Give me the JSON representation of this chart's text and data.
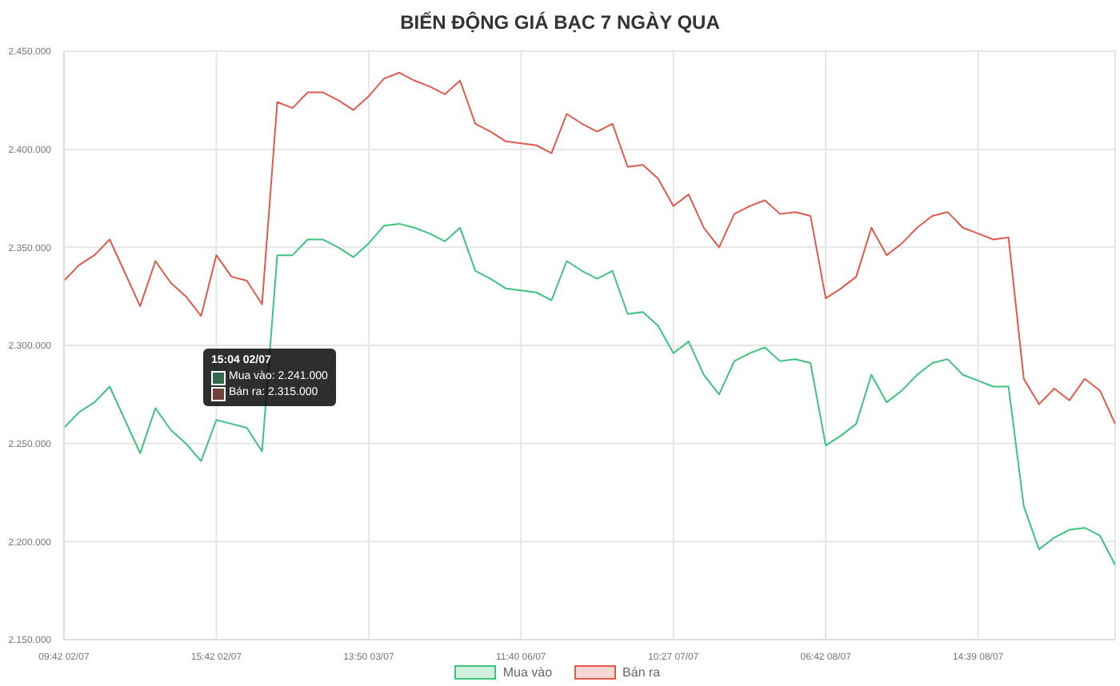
{
  "chart_data": {
    "type": "line",
    "title": "BIẾN ĐỘNG GIÁ BẠC 7 NGÀY QUA",
    "categories": [
      "09:42 02/07",
      null,
      null,
      null,
      null,
      null,
      null,
      null,
      null,
      null,
      "15:42 02/07",
      null,
      null,
      null,
      null,
      null,
      null,
      null,
      null,
      null,
      "13:50 03/07",
      null,
      null,
      null,
      null,
      null,
      null,
      null,
      null,
      null,
      "11:40 06/07",
      null,
      null,
      null,
      null,
      null,
      null,
      null,
      null,
      null,
      "10:27 07/07",
      null,
      null,
      null,
      null,
      null,
      null,
      null,
      null,
      null,
      "06:42 08/07",
      null,
      null,
      null,
      null,
      null,
      null,
      null,
      null,
      null,
      "14:39 08/07",
      null,
      null,
      null,
      null,
      null,
      null,
      null,
      null,
      null
    ],
    "series": [
      {
        "name": "Mua vào",
        "color": "#3ec47e",
        "values": [
          2258000,
          2266000,
          2271000,
          2279000,
          2262000,
          2245000,
          2268000,
          2257000,
          2250000,
          2241000,
          2262000,
          2260000,
          2258000,
          2246000,
          2346000,
          2346000,
          2354000,
          2354000,
          2350000,
          2345000,
          2352000,
          2361000,
          2362000,
          2360000,
          2357000,
          2353000,
          2360000,
          2338000,
          2334000,
          2329000,
          2328000,
          2327000,
          2323000,
          2343000,
          2338000,
          2334000,
          2338000,
          2316000,
          2317000,
          2310000,
          2296000,
          2302000,
          2285000,
          2275000,
          2292000,
          2296000,
          2299000,
          2292000,
          2293000,
          2291000,
          2249000,
          2254000,
          2260000,
          2285000,
          2271000,
          2277000,
          2285000,
          2291000,
          2293000,
          2285000,
          2282000,
          2279000,
          2279000,
          2218000,
          2196000,
          2202000,
          2206000,
          2207000,
          2203000,
          2188000
        ]
      },
      {
        "name": "Bán ra",
        "color": "#e05a4e",
        "values": [
          2333000,
          2341000,
          2346000,
          2354000,
          2337000,
          2320000,
          2343000,
          2332000,
          2325000,
          2315000,
          2346000,
          2335000,
          2333000,
          2321000,
          2424000,
          2421000,
          2429000,
          2429000,
          2425000,
          2420000,
          2427000,
          2436000,
          2439000,
          2435000,
          2432000,
          2428000,
          2435000,
          2413000,
          2409000,
          2404000,
          2403000,
          2402000,
          2398000,
          2418000,
          2413000,
          2409000,
          2413000,
          2391000,
          2392000,
          2385000,
          2371000,
          2377000,
          2360000,
          2350000,
          2367000,
          2371000,
          2374000,
          2367000,
          2368000,
          2366000,
          2324000,
          2329000,
          2335000,
          2360000,
          2346000,
          2352000,
          2360000,
          2366000,
          2368000,
          2360000,
          2357000,
          2354000,
          2355000,
          2283000,
          2270000,
          2278000,
          2272000,
          2283000,
          2277000,
          2260000
        ]
      }
    ],
    "ylim": [
      2150000,
      2450000
    ],
    "yticks": [
      {
        "value": 2150000,
        "label": "2.150.000"
      },
      {
        "value": 2200000,
        "label": "2.200.000"
      },
      {
        "value": 2250000,
        "label": "2.250.000"
      },
      {
        "value": 2300000,
        "label": "2.300.000"
      },
      {
        "value": 2350000,
        "label": "2.350.000"
      },
      {
        "value": 2400000,
        "label": "2.400.000"
      },
      {
        "value": 2450000,
        "label": "2.450.000"
      }
    ],
    "grid": true,
    "legend": "bottom",
    "annotations": [
      "15:04 02/07",
      "Mua vào: 2.241.000",
      "Bán ra: 2.315.000"
    ]
  }
}
